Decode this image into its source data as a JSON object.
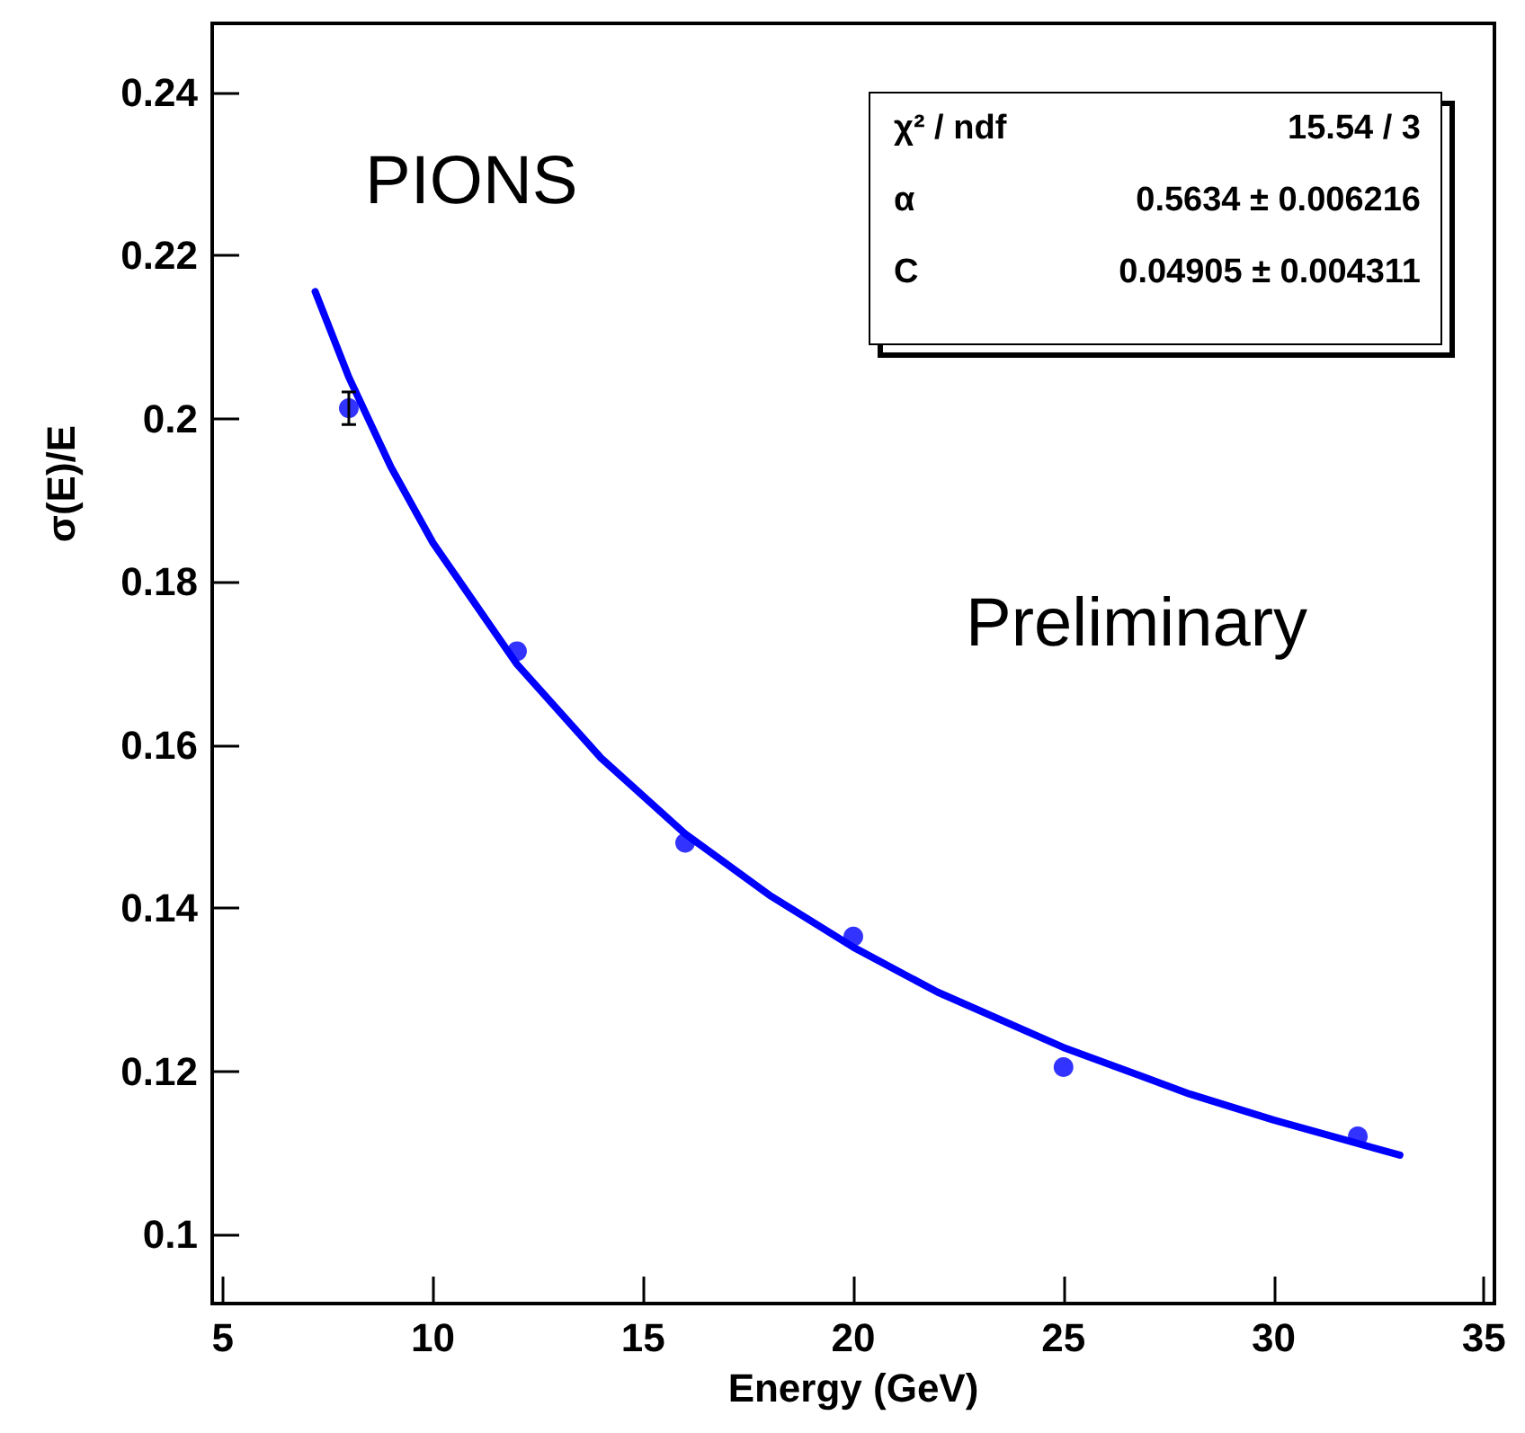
{
  "chart_data": {
    "type": "scatter",
    "xlabel": "Energy (GeV)",
    "ylabel": "σ(E)/E",
    "xlim": [
      4.75,
      35.25
    ],
    "xticks": [
      5,
      10,
      15,
      20,
      25,
      30,
      35
    ],
    "ylim": [
      0.0915,
      0.2485
    ],
    "yticks": [
      0.1,
      0.12,
      0.14,
      0.16,
      0.18,
      0.2,
      0.22,
      0.24
    ],
    "marker": "circle",
    "series": [
      {
        "type": "scatter",
        "color": "#0000ff",
        "x": [
          8,
          12,
          16,
          20,
          25,
          32
        ],
        "values": [
          0.2013,
          0.1715,
          0.148,
          0.1365,
          0.1205,
          0.112
        ],
        "errors": [
          0.002,
          null,
          null,
          null,
          null,
          null
        ]
      },
      {
        "type": "line",
        "color": "#0000ff",
        "marker": "none",
        "line_style": "solid",
        "x": [
          7.2,
          8,
          9,
          10,
          12,
          14,
          16,
          18,
          20,
          22,
          25,
          28,
          30,
          33
        ],
        "values": [
          0.2156,
          0.2051,
          0.1941,
          0.1848,
          0.1699,
          0.1584,
          0.1491,
          0.1416,
          0.1352,
          0.1297,
          0.1229,
          0.1172,
          0.114,
          0.1097
        ]
      }
    ],
    "annotations": [
      "PIONS",
      "Preliminary",
      "χ² / ndf",
      "15.54 / 3",
      "α",
      "0.5634 ± 0.006216",
      "C",
      "0.04905 ± 0.004311"
    ]
  }
}
